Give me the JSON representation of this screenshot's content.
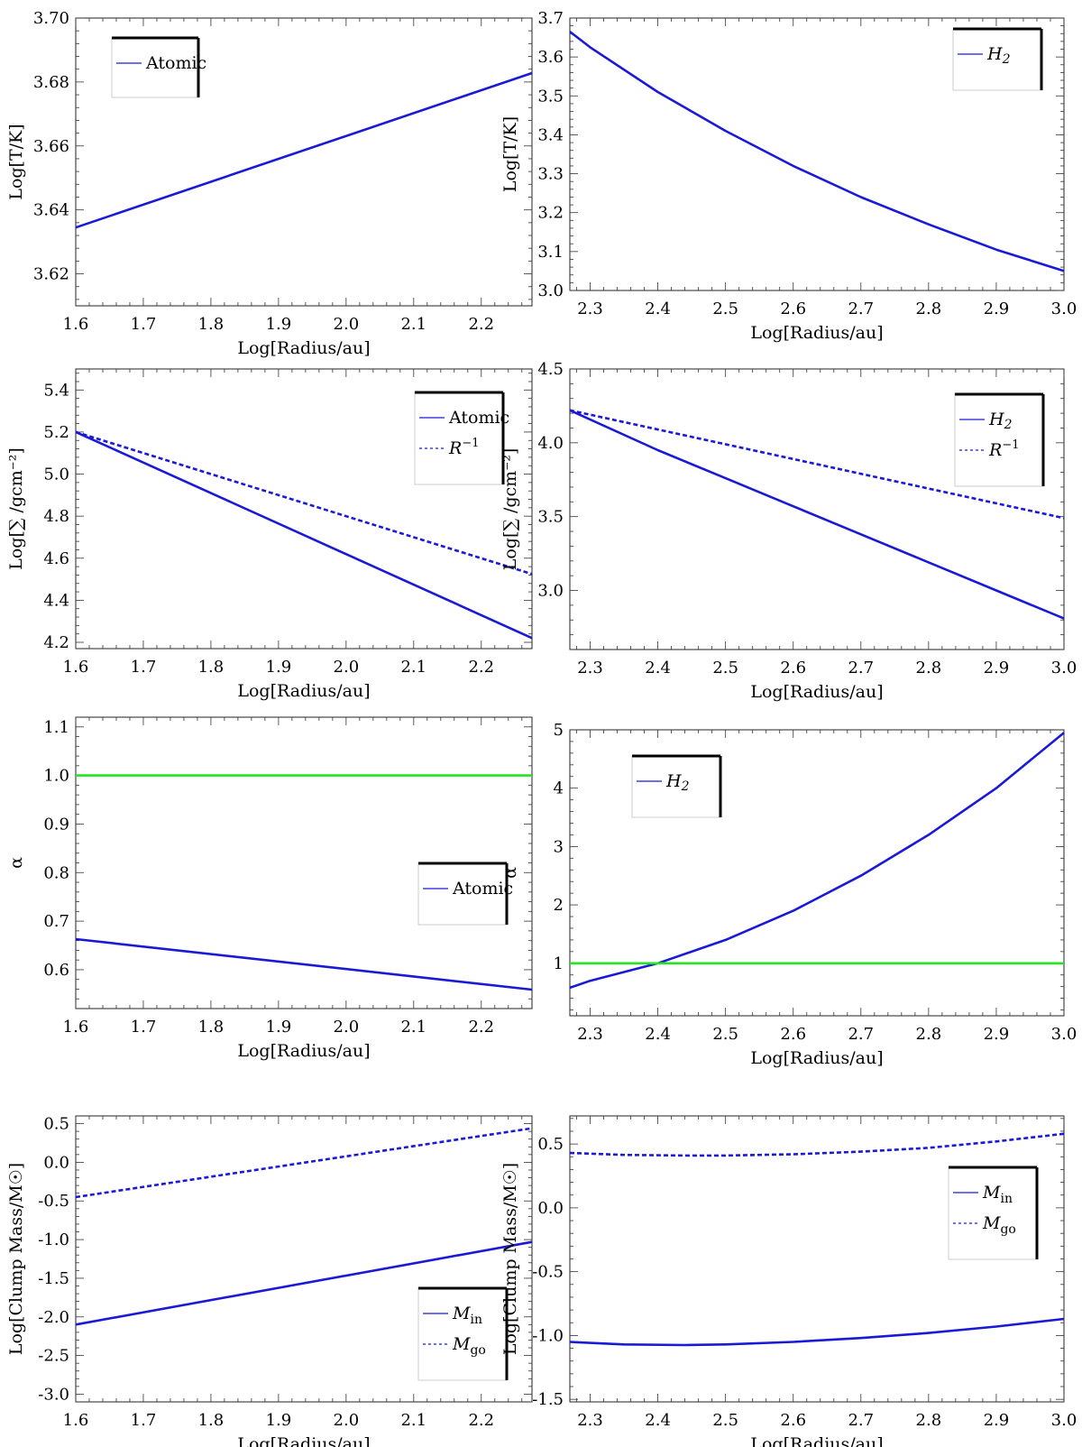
{
  "chart_data": [
    {
      "type": "line",
      "xlabel": "Log[Radius/au]",
      "ylabel": "Log[T/K]",
      "xlim": [
        1.6,
        2.275
      ],
      "ylim": [
        3.61,
        3.7
      ],
      "xticks": [
        "1.6",
        "1.7",
        "1.8",
        "1.9",
        "2.0",
        "2.1",
        "2.2"
      ],
      "yticks": [
        "3.62",
        "3.64",
        "3.66",
        "3.68",
        "3.70"
      ],
      "legend_position": "top-left",
      "series": [
        {
          "name": "Atomic",
          "color": "#1a1ad6",
          "style": "solid",
          "x": [
            1.6,
            2.275
          ],
          "y": [
            3.6345,
            3.6828
          ]
        }
      ]
    },
    {
      "type": "line",
      "xlabel": "Log[Radius/au]",
      "ylabel": "Log[T/K]",
      "xlim": [
        2.27,
        3.0
      ],
      "ylim": [
        3.0,
        3.7
      ],
      "xticks": [
        "2.3",
        "2.4",
        "2.5",
        "2.6",
        "2.7",
        "2.8",
        "2.9",
        "3.0"
      ],
      "yticks": [
        "3.0",
        "3.1",
        "3.2",
        "3.3",
        "3.4",
        "3.5",
        "3.6",
        "3.7"
      ],
      "legend_position": "top-right",
      "series": [
        {
          "name": "H2",
          "color": "#1a1ad6",
          "style": "solid",
          "x": [
            2.27,
            2.3,
            2.4,
            2.5,
            2.6,
            2.7,
            2.8,
            2.9,
            3.0
          ],
          "y": [
            3.665,
            3.625,
            3.51,
            3.41,
            3.32,
            3.24,
            3.17,
            3.105,
            3.05
          ]
        }
      ]
    },
    {
      "type": "line",
      "xlabel": "Log[Radius/au]",
      "ylabel": "Log[∑ /gcm⁻²]",
      "xlim": [
        1.6,
        2.275
      ],
      "ylim": [
        4.17,
        5.5
      ],
      "xticks": [
        "1.6",
        "1.7",
        "1.8",
        "1.9",
        "2.0",
        "2.1",
        "2.2"
      ],
      "yticks": [
        "4.2",
        "4.4",
        "4.6",
        "4.8",
        "5.0",
        "5.2",
        "5.4"
      ],
      "legend_position": "top-right",
      "series": [
        {
          "name": "Atomic",
          "color": "#1a1ad6",
          "style": "solid",
          "x": [
            1.6,
            2.275
          ],
          "y": [
            5.2,
            4.22
          ]
        },
        {
          "name": "R⁻¹",
          "color": "#1a1ad6",
          "style": "dashed",
          "x": [
            1.6,
            2.275
          ],
          "y": [
            5.2,
            4.525
          ]
        }
      ]
    },
    {
      "type": "line",
      "xlabel": "Log[Radius/au]",
      "ylabel": "Log[∑ /gcm⁻²]",
      "xlim": [
        2.27,
        3.0
      ],
      "ylim": [
        2.6,
        4.5
      ],
      "xticks": [
        "2.3",
        "2.4",
        "2.5",
        "2.6",
        "2.7",
        "2.8",
        "2.9",
        "3.0"
      ],
      "yticks": [
        "3.0",
        "3.5",
        "4.0",
        "4.5"
      ],
      "legend_position": "top-right",
      "series": [
        {
          "name": "H2",
          "color": "#1a1ad6",
          "style": "solid",
          "x": [
            2.27,
            2.4,
            2.5,
            2.6,
            2.7,
            2.8,
            2.9,
            3.0
          ],
          "y": [
            4.22,
            3.95,
            3.76,
            3.57,
            3.38,
            3.19,
            3.0,
            2.81
          ]
        },
        {
          "name": "R⁻¹",
          "color": "#1a1ad6",
          "style": "dashed",
          "x": [
            2.27,
            3.0
          ],
          "y": [
            4.22,
            3.49
          ]
        }
      ]
    },
    {
      "type": "line",
      "xlabel": "Log[Radius/au]",
      "ylabel": "α",
      "xlim": [
        1.6,
        2.275
      ],
      "ylim": [
        0.52,
        1.12
      ],
      "xticks": [
        "1.6",
        "1.7",
        "1.8",
        "1.9",
        "2.0",
        "2.1",
        "2.2"
      ],
      "yticks": [
        "0.6",
        "0.7",
        "0.8",
        "0.9",
        "1.0",
        "1.1"
      ],
      "legend_position": "center-right",
      "series": [
        {
          "name": "Atomic",
          "color": "#1a1ad6",
          "style": "solid",
          "x": [
            1.6,
            2.275
          ],
          "y": [
            0.663,
            0.559
          ]
        },
        {
          "name": "",
          "color": "#22e622",
          "style": "solid",
          "x": [
            1.6,
            2.275
          ],
          "y": [
            1.0,
            1.0
          ]
        }
      ]
    },
    {
      "type": "line",
      "xlabel": "Log[Radius/au]",
      "ylabel": "α",
      "xlim": [
        2.27,
        3.0
      ],
      "ylim": [
        0.1,
        5.0
      ],
      "xticks": [
        "2.3",
        "2.4",
        "2.5",
        "2.6",
        "2.7",
        "2.8",
        "2.9",
        "3.0"
      ],
      "yticks": [
        "1",
        "2",
        "3",
        "4",
        "5"
      ],
      "legend_position": "top-left",
      "series": [
        {
          "name": "H2",
          "color": "#1a1ad6",
          "style": "solid",
          "x": [
            2.27,
            2.3,
            2.4,
            2.5,
            2.6,
            2.7,
            2.8,
            2.9,
            3.0
          ],
          "y": [
            0.58,
            0.7,
            1.0,
            1.4,
            1.9,
            2.5,
            3.2,
            4.0,
            4.95
          ]
        },
        {
          "name": "",
          "color": "#22e622",
          "style": "solid",
          "x": [
            2.27,
            3.0
          ],
          "y": [
            1.0,
            1.0
          ]
        }
      ]
    },
    {
      "type": "line",
      "xlabel": "Log[Radius/au]",
      "ylabel": "Log[Clump Mass/M☉]",
      "xlim": [
        1.6,
        2.275
      ],
      "ylim": [
        -3.1,
        0.6
      ],
      "xticks": [
        "1.6",
        "1.7",
        "1.8",
        "1.9",
        "2.0",
        "2.1",
        "2.2"
      ],
      "yticks": [
        "-3.0",
        "-2.5",
        "-2.0",
        "-1.5",
        "-1.0",
        "-0.5",
        "0.0",
        "0.5"
      ],
      "legend_position": "bottom-right",
      "series": [
        {
          "name": "Min",
          "color": "#1a1ad6",
          "style": "solid",
          "x": [
            1.6,
            2.275
          ],
          "y": [
            -2.1,
            -1.03
          ]
        },
        {
          "name": "Mgo",
          "color": "#1a1ad6",
          "style": "dashed",
          "x": [
            1.6,
            2.275
          ],
          "y": [
            -0.45,
            0.44
          ]
        }
      ]
    },
    {
      "type": "line",
      "xlabel": "Log[Radius/au]",
      "ylabel": "Log[Clump Mass/M☉]",
      "xlim": [
        2.27,
        3.0
      ],
      "ylim": [
        -1.52,
        0.72
      ],
      "xticks": [
        "2.3",
        "2.4",
        "2.5",
        "2.6",
        "2.7",
        "2.8",
        "2.9",
        "3.0"
      ],
      "yticks": [
        "-1.5",
        "-1.0",
        "-0.5",
        "0.0",
        "0.5"
      ],
      "legend_position": "center-right",
      "series": [
        {
          "name": "Min",
          "color": "#1a1ad6",
          "style": "solid",
          "x": [
            2.27,
            2.35,
            2.44,
            2.5,
            2.6,
            2.7,
            2.8,
            2.9,
            3.0
          ],
          "y": [
            -1.05,
            -1.07,
            -1.075,
            -1.07,
            -1.05,
            -1.02,
            -0.98,
            -0.93,
            -0.87
          ]
        },
        {
          "name": "Mgo",
          "color": "#1a1ad6",
          "style": "dashed",
          "x": [
            2.27,
            2.35,
            2.44,
            2.5,
            2.6,
            2.7,
            2.8,
            2.9,
            3.0
          ],
          "y": [
            0.43,
            0.415,
            0.41,
            0.41,
            0.42,
            0.44,
            0.47,
            0.52,
            0.58
          ]
        }
      ]
    }
  ]
}
